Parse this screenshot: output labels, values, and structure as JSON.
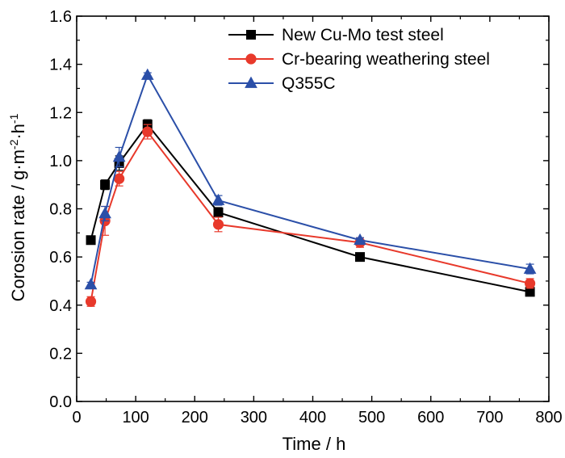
{
  "chart_data": {
    "type": "line",
    "xlabel": "Time / h",
    "ylabel_parts": [
      "Corosion rate / g·m",
      "-2",
      "·h",
      "-1"
    ],
    "xlim": [
      0,
      800
    ],
    "ylim": [
      0,
      1.6
    ],
    "xticks": [
      "0",
      "100",
      "200",
      "300",
      "400",
      "500",
      "600",
      "700",
      "800"
    ],
    "yticks": [
      "0.0",
      "0.2",
      "0.4",
      "0.6",
      "0.8",
      "1.0",
      "1.2",
      "1.4",
      "1.6"
    ],
    "grid": false,
    "legend_position": "top-right",
    "series": [
      {
        "name": "New Cu-Mo test steel",
        "color": "#000000",
        "marker": "square",
        "x": [
          24,
          48,
          72,
          120,
          240,
          480,
          768
        ],
        "y": [
          0.67,
          0.9,
          0.99,
          1.15,
          0.785,
          0.6,
          0.455
        ],
        "err": [
          0.01,
          0.02,
          0.03,
          0.02,
          0.02,
          0.01,
          0.01
        ]
      },
      {
        "name": "Cr-bearing weathering steel",
        "color": "#e8392b",
        "marker": "circle",
        "x": [
          24,
          48,
          72,
          120,
          240,
          480,
          768
        ],
        "y": [
          0.415,
          0.75,
          0.925,
          1.12,
          0.735,
          0.66,
          0.49
        ],
        "err": [
          0.02,
          0.06,
          0.03,
          0.03,
          0.03,
          0.02,
          0.02
        ]
      },
      {
        "name": "Q355C",
        "color": "#2b4fa8",
        "marker": "triangle",
        "x": [
          24,
          48,
          72,
          120,
          240,
          480,
          768
        ],
        "y": [
          0.485,
          0.78,
          1.015,
          1.355,
          0.835,
          0.67,
          0.55
        ],
        "err": [
          0.01,
          0.03,
          0.04,
          0.01,
          0.02,
          0.01,
          0.02
        ]
      }
    ]
  }
}
